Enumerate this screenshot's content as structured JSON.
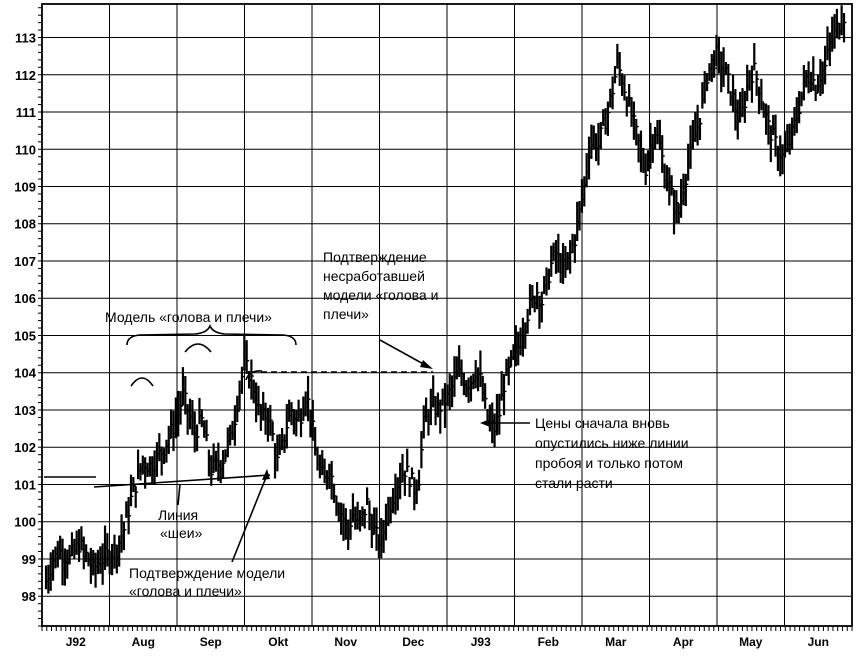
{
  "chart_data": {
    "type": "bar",
    "subtype": "daily high-low price bars",
    "title": "",
    "xlabel": "",
    "ylabel": "",
    "ylim": [
      97.2,
      113.9
    ],
    "y_ticks": [
      "98",
      "99",
      "100",
      "101",
      "102",
      "103",
      "104",
      "105",
      "106",
      "107",
      "108",
      "109",
      "110",
      "111",
      "112",
      "113"
    ],
    "x_months": [
      "J92",
      "Aug",
      "Sep",
      "Okt",
      "Nov",
      "Dec",
      "J93",
      "Feb",
      "Mar",
      "Apr",
      "May",
      "Jun"
    ],
    "grid": true,
    "series": [
      {
        "values_approx": [
          [
            0,
            98.4
          ],
          [
            3,
            99.0
          ],
          [
            6,
            99.2
          ],
          [
            10,
            99.0
          ],
          [
            14,
            99.4
          ],
          [
            18,
            99.0
          ],
          [
            20,
            98.7
          ],
          [
            22,
            98.9
          ],
          [
            26,
            99.1
          ],
          [
            30,
            99.3
          ],
          [
            33,
            99.8
          ],
          [
            36,
            100.6
          ],
          [
            39,
            101.2
          ],
          [
            41,
            101.6
          ],
          [
            44,
            101.5
          ],
          [
            47,
            101.7
          ],
          [
            50,
            102.0
          ],
          [
            53,
            102.4
          ],
          [
            56,
            102.9
          ],
          [
            58,
            103.4
          ],
          [
            60,
            103.0
          ],
          [
            63,
            102.4
          ],
          [
            66,
            102.7
          ],
          [
            68,
            102.1
          ],
          [
            70,
            101.4
          ],
          [
            72,
            101.5
          ],
          [
            75,
            101.7
          ],
          [
            78,
            102.2
          ],
          [
            80,
            102.8
          ],
          [
            82,
            103.6
          ],
          [
            84,
            104.2
          ],
          [
            86,
            104.0
          ],
          [
            88,
            103.6
          ],
          [
            90,
            103.0
          ],
          [
            92,
            102.8
          ],
          [
            94,
            102.9
          ],
          [
            96,
            102.3
          ],
          [
            98,
            101.6
          ],
          [
            100,
            102.0
          ],
          [
            102,
            102.6
          ],
          [
            104,
            103.0
          ],
          [
            106,
            102.7
          ],
          [
            108,
            102.9
          ],
          [
            110,
            103.4
          ],
          [
            112,
            103.0
          ],
          [
            114,
            101.9
          ],
          [
            116,
            101.4
          ],
          [
            118,
            101.1
          ],
          [
            120,
            101.5
          ],
          [
            122,
            100.9
          ],
          [
            124,
            100.4
          ],
          [
            126,
            100.1
          ],
          [
            128,
            99.8
          ],
          [
            130,
            100.2
          ],
          [
            132,
            99.9
          ],
          [
            134,
            100.1
          ],
          [
            136,
            100.5
          ],
          [
            138,
            99.9
          ],
          [
            140,
            99.6
          ],
          [
            142,
            99.4
          ],
          [
            144,
            100.1
          ],
          [
            146,
            100.5
          ],
          [
            148,
            100.9
          ],
          [
            150,
            101.2
          ],
          [
            152,
            101.4
          ],
          [
            154,
            101.2
          ],
          [
            156,
            100.9
          ],
          [
            158,
            101.2
          ],
          [
            160,
            102.6
          ],
          [
            162,
            102.9
          ],
          [
            164,
            103.1
          ],
          [
            166,
            103.0
          ],
          [
            168,
            103.2
          ],
          [
            170,
            103.3
          ],
          [
            172,
            103.6
          ],
          [
            174,
            103.9
          ],
          [
            176,
            104.0
          ],
          [
            178,
            103.7
          ],
          [
            180,
            103.8
          ],
          [
            182,
            104.1
          ],
          [
            184,
            103.8
          ],
          [
            186,
            103.1
          ],
          [
            188,
            102.6
          ],
          [
            190,
            102.5
          ],
          [
            192,
            102.9
          ],
          [
            194,
            103.7
          ],
          [
            196,
            104.0
          ],
          [
            198,
            104.4
          ],
          [
            200,
            104.7
          ],
          [
            202,
            105.1
          ],
          [
            204,
            105.6
          ],
          [
            206,
            105.9
          ],
          [
            208,
            106.2
          ],
          [
            210,
            105.9
          ],
          [
            212,
            106.4
          ],
          [
            214,
            106.9
          ],
          [
            216,
            107.2
          ],
          [
            218,
            106.9
          ],
          [
            220,
            106.7
          ],
          [
            222,
            107.2
          ],
          [
            224,
            107.6
          ],
          [
            226,
            108.3
          ],
          [
            228,
            109.0
          ],
          [
            230,
            110.0
          ],
          [
            232,
            110.3
          ],
          [
            234,
            110.1
          ],
          [
            236,
            110.6
          ],
          [
            238,
            111.0
          ],
          [
            240,
            111.6
          ],
          [
            242,
            112.3
          ],
          [
            244,
            111.9
          ],
          [
            246,
            111.4
          ],
          [
            248,
            110.9
          ],
          [
            250,
            110.4
          ],
          [
            252,
            109.9
          ],
          [
            254,
            109.5
          ],
          [
            256,
            110.1
          ],
          [
            258,
            110.5
          ],
          [
            260,
            110.1
          ],
          [
            262,
            109.4
          ],
          [
            264,
            109.0
          ],
          [
            266,
            108.5
          ],
          [
            268,
            108.3
          ],
          [
            270,
            109.0
          ],
          [
            272,
            109.6
          ],
          [
            274,
            110.1
          ],
          [
            276,
            110.6
          ],
          [
            278,
            111.2
          ],
          [
            280,
            112.0
          ],
          [
            282,
            112.3
          ],
          [
            284,
            112.5
          ],
          [
            286,
            112.3
          ],
          [
            288,
            112.0
          ],
          [
            290,
            111.6
          ],
          [
            292,
            111.1
          ],
          [
            294,
            110.7
          ],
          [
            296,
            111.3
          ],
          [
            298,
            112.0
          ],
          [
            300,
            112.1
          ],
          [
            302,
            111.7
          ],
          [
            304,
            111.1
          ],
          [
            306,
            110.6
          ],
          [
            308,
            110.3
          ],
          [
            310,
            110.0
          ],
          [
            312,
            109.8
          ],
          [
            314,
            110.0
          ],
          [
            316,
            110.4
          ],
          [
            318,
            110.9
          ],
          [
            320,
            111.4
          ],
          [
            322,
            111.9
          ],
          [
            324,
            112.0
          ],
          [
            326,
            111.7
          ],
          [
            328,
            112.0
          ],
          [
            330,
            112.2
          ],
          [
            332,
            112.8
          ],
          [
            334,
            113.1
          ],
          [
            336,
            113.4
          ],
          [
            338,
            113.6
          ]
        ]
      }
    ],
    "annotations": {
      "hs_model": "Модель «голова и плечи»",
      "neckline_1": "Линия",
      "neckline_2": "«шеи»",
      "hs_confirm_1": "Подтверждение модели",
      "hs_confirm_2": "«голова и плечи»",
      "failed_1": "Подтверждение",
      "failed_2": "несработавшей",
      "failed_3": "модели «голова и",
      "failed_4": "плечи»",
      "dip_1": "Цены сначала вновь",
      "dip_2": "опустились ниже линии",
      "dip_3": "пробоя и только потом",
      "dip_4": "стали расти"
    }
  }
}
